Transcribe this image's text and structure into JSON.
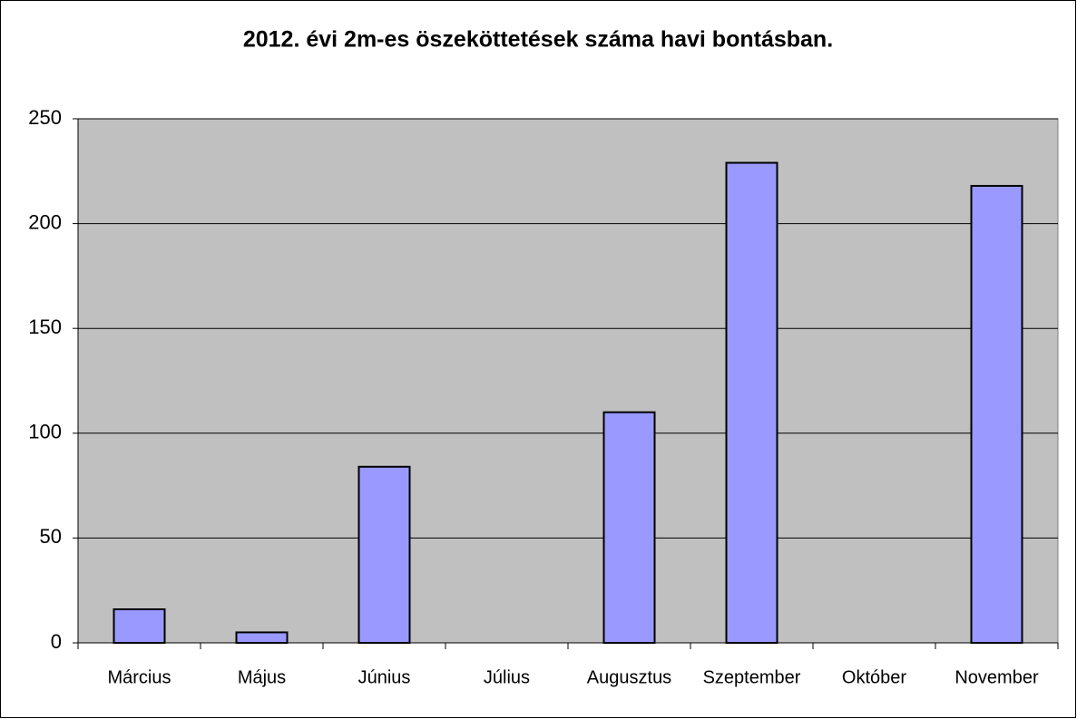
{
  "chart_data": {
    "type": "bar",
    "title": "2012. évi 2m-es öszeköttetések száma havi bontásban.",
    "categories": [
      "Március",
      "Május",
      "Június",
      "Július",
      "Augusztus",
      "Szeptember",
      "Október",
      "November"
    ],
    "values": [
      16,
      5,
      84,
      0,
      110,
      229,
      0,
      218
    ],
    "color": "#9999ff",
    "plot_background": "#c0c0c0",
    "ylim": [
      0,
      250
    ],
    "yticks": [
      0,
      50,
      100,
      150,
      200,
      250
    ],
    "grid": true
  }
}
